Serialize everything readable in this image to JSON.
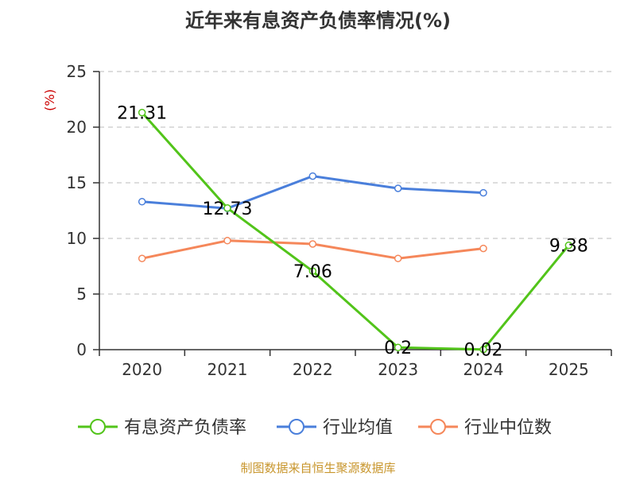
{
  "chart_data": {
    "type": "line",
    "title": "近年来有息资产负债率情况(%)",
    "ylabel": "(%)",
    "ylim": [
      0,
      25
    ],
    "yticks": [
      0,
      5,
      10,
      15,
      20,
      25
    ],
    "grid": true,
    "legend_position": "bottom",
    "categories": [
      "2020",
      "2021",
      "2022",
      "2023",
      "2024",
      "2025"
    ],
    "series": [
      {
        "name": "有息资产负债率",
        "color": "#52c41a",
        "values": [
          21.31,
          12.73,
          7.06,
          0.2,
          0.02,
          9.38
        ],
        "labels": [
          "21.31",
          "12.73",
          "7.06",
          "0.2",
          "0.02",
          "9.38"
        ]
      },
      {
        "name": "行业均值",
        "color": "#4a7fdb",
        "values": [
          13.3,
          12.7,
          15.6,
          14.5,
          14.1,
          null
        ]
      },
      {
        "name": "行业中位数",
        "color": "#f5875a",
        "values": [
          8.2,
          9.8,
          9.5,
          8.2,
          9.1,
          null
        ]
      }
    ],
    "source": "制图数据来自恒生聚源数据库",
    "colors": {
      "title": "#333333",
      "axis": "#333333",
      "grid": "#bbbbbb",
      "ylabel": "#cc0000",
      "source": "#c8962d"
    }
  }
}
